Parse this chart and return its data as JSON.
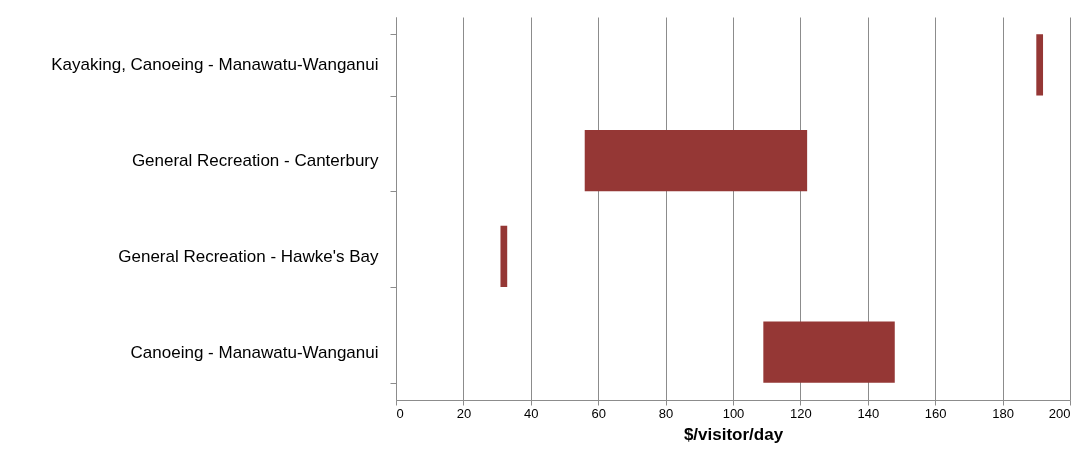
{
  "chart_data": {
    "type": "bar",
    "orientation": "horizontal",
    "xlabel": "$/visitor/day",
    "categories": [
      "Kayaking, Canoeing - Manawatu-Wanganui",
      "General Recreation - Canterbury",
      "General Recreation - Hawke's Bay",
      "Canoeing - Manawatu-Wanganui"
    ],
    "base": [
      190,
      56,
      31,
      109
    ],
    "values": [
      2,
      66,
      2,
      39
    ],
    "color": "#953735",
    "xlim": [
      0,
      200
    ],
    "xticks": [
      0,
      20,
      40,
      60,
      80,
      100,
      120,
      140,
      160,
      180,
      200
    ],
    "grid": "x"
  }
}
